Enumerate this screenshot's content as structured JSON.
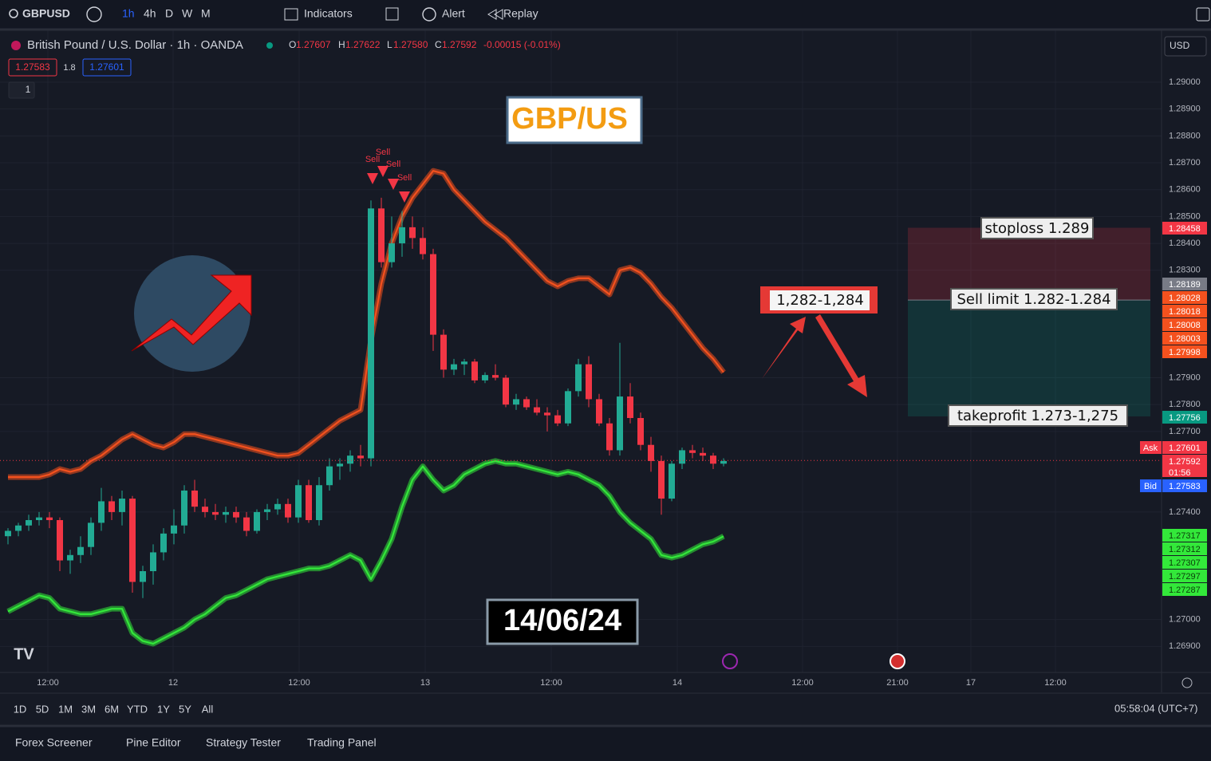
{
  "toolbar": {
    "symbol": "GBPUSD",
    "intervals": [
      "1h",
      "4h",
      "D",
      "W",
      "M"
    ],
    "indicators": "Indicators",
    "alert": "Alert",
    "replay": "Replay"
  },
  "legend": {
    "title": "British Pound / U.S. Dollar · 1h · OANDA",
    "o_key": "O",
    "o": "1.27607",
    "h_key": "H",
    "h": "1.27622",
    "l_key": "L",
    "l": "1.27580",
    "c_key": "C",
    "c": "1.27592",
    "change": "-0.00015 (-0.01%)",
    "sell_box": "1.27583",
    "spread": "1.8",
    "buy_box": "1.27601",
    "lots": "1"
  },
  "currency": "USD",
  "chart_data": {
    "type": "candlestick",
    "ylim": [
      1.268,
      1.2919
    ],
    "yticks": [
      {
        "value": 1.29,
        "label": "1.29000"
      },
      {
        "value": 1.289,
        "label": "1.28900"
      },
      {
        "value": 1.288,
        "label": "1.28800"
      },
      {
        "value": 1.287,
        "label": "1.28700"
      },
      {
        "value": 1.286,
        "label": "1.28600"
      },
      {
        "value": 1.285,
        "label": "1.28500"
      },
      {
        "value": 1.284,
        "label": "1.28400"
      },
      {
        "value": 1.283,
        "label": "1.28300"
      },
      {
        "value": 1.279,
        "label": "1.27900"
      },
      {
        "value": 1.278,
        "label": "1.27800"
      },
      {
        "value": 1.277,
        "label": "1.27700"
      },
      {
        "value": 1.274,
        "label": "1.27400"
      },
      {
        "value": 1.27,
        "label": "1.27000"
      },
      {
        "value": 1.269,
        "label": "1.26900"
      }
    ],
    "xticks": [
      "12:00",
      "12",
      "12:00",
      "13",
      "12:00",
      "14",
      "12:00",
      "21:00",
      "17",
      "12:00"
    ],
    "up_color": "#22ab94",
    "down_color": "#f23645",
    "ohlc": [
      [
        1.2731,
        1.2734,
        1.2728,
        1.2733
      ],
      [
        1.2733,
        1.2736,
        1.2731,
        1.2735
      ],
      [
        1.2735,
        1.2739,
        1.2733,
        1.2737
      ],
      [
        1.2737,
        1.274,
        1.2735,
        1.2738
      ],
      [
        1.2738,
        1.274,
        1.2734,
        1.2737
      ],
      [
        1.2737,
        1.2738,
        1.2718,
        1.2722
      ],
      [
        1.2722,
        1.2726,
        1.2717,
        1.2724
      ],
      [
        1.2724,
        1.2731,
        1.2721,
        1.2727
      ],
      [
        1.2727,
        1.2738,
        1.2724,
        1.2736
      ],
      [
        1.2736,
        1.2749,
        1.2733,
        1.2744
      ],
      [
        1.2744,
        1.2746,
        1.2737,
        1.274
      ],
      [
        1.274,
        1.2748,
        1.2735,
        1.2745
      ],
      [
        1.2745,
        1.2746,
        1.271,
        1.2714
      ],
      [
        1.2714,
        1.272,
        1.2708,
        1.2718
      ],
      [
        1.2718,
        1.2728,
        1.2713,
        1.2725
      ],
      [
        1.2725,
        1.2734,
        1.2722,
        1.2732
      ],
      [
        1.2732,
        1.2741,
        1.2728,
        1.2735
      ],
      [
        1.2735,
        1.275,
        1.2732,
        1.2748
      ],
      [
        1.2748,
        1.2752,
        1.274,
        1.2742
      ],
      [
        1.2742,
        1.2745,
        1.2738,
        1.274
      ],
      [
        1.274,
        1.2743,
        1.2737,
        1.2739
      ],
      [
        1.2739,
        1.2742,
        1.2736,
        1.274
      ],
      [
        1.274,
        1.2742,
        1.2736,
        1.2738
      ],
      [
        1.2738,
        1.274,
        1.2731,
        1.2733
      ],
      [
        1.2733,
        1.2741,
        1.2732,
        1.274
      ],
      [
        1.274,
        1.2743,
        1.2737,
        1.2741
      ],
      [
        1.2741,
        1.2745,
        1.2739,
        1.2743
      ],
      [
        1.2743,
        1.2745,
        1.2736,
        1.2738
      ],
      [
        1.2738,
        1.2752,
        1.2736,
        1.275
      ],
      [
        1.275,
        1.2752,
        1.2736,
        1.2737
      ],
      [
        1.2737,
        1.2753,
        1.2735,
        1.275
      ],
      [
        1.275,
        1.276,
        1.2748,
        1.2757
      ],
      [
        1.2757,
        1.276,
        1.2752,
        1.2758
      ],
      [
        1.2758,
        1.2763,
        1.2755,
        1.2761
      ],
      [
        1.2761,
        1.2765,
        1.2757,
        1.276
      ],
      [
        1.276,
        1.2856,
        1.2757,
        1.2853
      ],
      [
        1.2853,
        1.2857,
        1.2831,
        1.2833
      ],
      [
        1.2833,
        1.285,
        1.2831,
        1.284
      ],
      [
        1.284,
        1.2852,
        1.2835,
        1.2846
      ],
      [
        1.2846,
        1.285,
        1.2838,
        1.2842
      ],
      [
        1.2842,
        1.2846,
        1.2834,
        1.2836
      ],
      [
        1.2836,
        1.2838,
        1.28,
        1.2806
      ],
      [
        1.2806,
        1.2808,
        1.279,
        1.2793
      ],
      [
        1.2793,
        1.2797,
        1.2791,
        1.2795
      ],
      [
        1.2795,
        1.2797,
        1.2791,
        1.2796
      ],
      [
        1.2796,
        1.2797,
        1.2788,
        1.2789
      ],
      [
        1.2789,
        1.2792,
        1.2788,
        1.2791
      ],
      [
        1.2791,
        1.2795,
        1.2789,
        1.279
      ],
      [
        1.279,
        1.2791,
        1.2779,
        1.278
      ],
      [
        1.278,
        1.2784,
        1.2778,
        1.2782
      ],
      [
        1.2782,
        1.2783,
        1.2778,
        1.2779
      ],
      [
        1.2779,
        1.2782,
        1.2776,
        1.2777
      ],
      [
        1.2777,
        1.2779,
        1.277,
        1.2776
      ],
      [
        1.2776,
        1.2778,
        1.2772,
        1.2773
      ],
      [
        1.2773,
        1.2786,
        1.2772,
        1.2785
      ],
      [
        1.2785,
        1.2797,
        1.2783,
        1.2795
      ],
      [
        1.2795,
        1.2798,
        1.2779,
        1.2782
      ],
      [
        1.2782,
        1.2784,
        1.2772,
        1.2773
      ],
      [
        1.2773,
        1.2775,
        1.2761,
        1.2763
      ],
      [
        1.2763,
        1.2803,
        1.2761,
        1.2783
      ],
      [
        1.2783,
        1.2788,
        1.2773,
        1.2775
      ],
      [
        1.2775,
        1.2777,
        1.2763,
        1.2765
      ],
      [
        1.2765,
        1.2768,
        1.2755,
        1.2759
      ],
      [
        1.2759,
        1.2761,
        1.2739,
        1.2745
      ],
      [
        1.2745,
        1.2759,
        1.2744,
        1.2758
      ],
      [
        1.2758,
        1.2764,
        1.2756,
        1.2763
      ],
      [
        1.2763,
        1.2765,
        1.276,
        1.2762
      ],
      [
        1.2762,
        1.2764,
        1.2759,
        1.2761
      ],
      [
        1.2761,
        1.2762,
        1.2756,
        1.2758
      ],
      [
        1.2758,
        1.276,
        1.2757,
        1.2759
      ]
    ],
    "series": [
      {
        "color": "#f4511e",
        "values": [
          1.2753,
          1.2753,
          1.2753,
          1.2753,
          1.2754,
          1.2756,
          1.2755,
          1.2756,
          1.2759,
          1.2761,
          1.2764,
          1.2767,
          1.2769,
          1.2767,
          1.2765,
          1.2764,
          1.2766,
          1.2769,
          1.2769,
          1.2768,
          1.2767,
          1.2766,
          1.2765,
          1.2764,
          1.2763,
          1.2762,
          1.2761,
          1.2761,
          1.2762,
          1.2765,
          1.2768,
          1.2771,
          1.2774,
          1.2776,
          1.2778,
          1.2804,
          1.2825,
          1.284,
          1.285,
          1.2857,
          1.2862,
          1.2867,
          1.2866,
          1.286,
          1.2856,
          1.2852,
          1.2848,
          1.2845,
          1.2842,
          1.2838,
          1.2834,
          1.283,
          1.2826,
          1.2824,
          1.2826,
          1.2827,
          1.2827,
          1.2824,
          1.2821,
          1.283,
          1.2831,
          1.2829,
          1.2825,
          1.282,
          1.2816,
          1.2811,
          1.2806,
          1.2801,
          1.2797,
          1.2792
        ]
      },
      {
        "color": "#33e83a",
        "values": [
          1.2703,
          1.2705,
          1.2707,
          1.2709,
          1.2708,
          1.2704,
          1.2703,
          1.2702,
          1.2702,
          1.2703,
          1.2704,
          1.2704,
          1.2695,
          1.2692,
          1.2691,
          1.2693,
          1.2695,
          1.2697,
          1.27,
          1.2702,
          1.2705,
          1.2708,
          1.2709,
          1.2711,
          1.2713,
          1.2715,
          1.2716,
          1.2717,
          1.2718,
          1.2719,
          1.2719,
          1.272,
          1.2722,
          1.2724,
          1.2722,
          1.2715,
          1.2722,
          1.273,
          1.2742,
          1.2752,
          1.2757,
          1.2752,
          1.2748,
          1.275,
          1.2754,
          1.2756,
          1.2758,
          1.2759,
          1.2758,
          1.2758,
          1.2757,
          1.2756,
          1.2755,
          1.2754,
          1.2755,
          1.2754,
          1.2752,
          1.275,
          1.2746,
          1.274,
          1.2736,
          1.2733,
          1.273,
          1.2724,
          1.2723,
          1.2724,
          1.2726,
          1.2728,
          1.2729,
          1.2731
        ]
      }
    ],
    "last_price": 1.27592,
    "position": {
      "stop": 1.28458,
      "entry": 1.28189,
      "target": 1.27756
    },
    "price_tags": [
      {
        "label": "1.28458",
        "color": "#f23645"
      },
      {
        "label": "1.28189",
        "color": "#787b86"
      },
      {
        "label": "1.28028",
        "color": "#f4511e"
      },
      {
        "label": "1.28018",
        "color": "#f4511e"
      },
      {
        "label": "1.28008",
        "color": "#f4511e"
      },
      {
        "label": "1.28003",
        "color": "#f4511e"
      },
      {
        "label": "1.27998",
        "color": "#f4511e"
      },
      {
        "label": "1.27756",
        "color": "#089981"
      },
      {
        "label": "1.27601",
        "color": "#f23645"
      },
      {
        "label": "1.27592",
        "color": "#f23645"
      },
      {
        "label": "01:56",
        "color": "#f23645"
      },
      {
        "label": "1.27583",
        "color": "#2962ff"
      },
      {
        "label": "1.27317",
        "color": "#33e83a"
      },
      {
        "label": "1.27312",
        "color": "#33e83a"
      },
      {
        "label": "1.27307",
        "color": "#33e83a"
      },
      {
        "label": "1.27297",
        "color": "#33e83a"
      },
      {
        "label": "1.27287",
        "color": "#33e83a"
      }
    ],
    "ask": "Ask",
    "bid": "Bid",
    "sell_labels": [
      "Sell",
      "Sell",
      "Sell",
      "Sell"
    ]
  },
  "annotations": {
    "pair": "GBP/US",
    "date": "14/06/24",
    "zone": "1,282-1,284",
    "stoploss": "stoploss 1.289",
    "sell_limit": "Sell limit 1.282-1.284",
    "takeprofit": "takeprofit 1.273-1,275"
  },
  "ranges": [
    "1D",
    "5D",
    "1M",
    "3M",
    "6M",
    "YTD",
    "1Y",
    "5Y",
    "All"
  ],
  "clock": "05:58:04 (UTC+7)",
  "panels": [
    "Forex Screener",
    "Pine Editor",
    "Strategy Tester",
    "Trading Panel"
  ]
}
